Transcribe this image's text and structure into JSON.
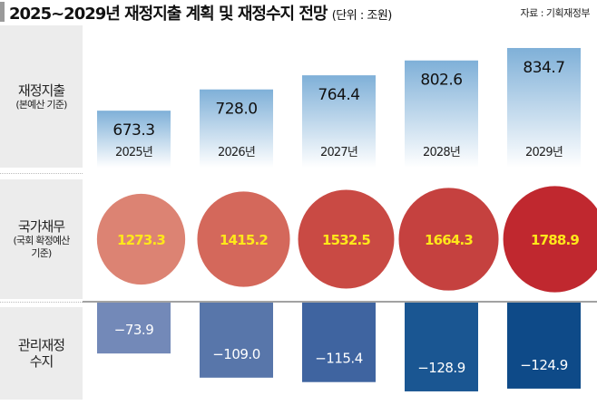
{
  "title": "2025~2029년 재정지출 계획 및 재정수지 전망",
  "unit": "(단위 : 조원)",
  "source": "자료 : 기획재정부",
  "chart_data": [
    {
      "type": "bar",
      "row_label": "재정지출",
      "row_sublabel": "(본예산 기준)",
      "categories": [
        "2025년",
        "2026년",
        "2027년",
        "2028년",
        "2029년"
      ],
      "values": [
        673.3,
        728.0,
        764.4,
        802.6,
        834.7
      ],
      "value_labels": [
        "673.3",
        "728.0",
        "764.4",
        "802.6",
        "834.7"
      ],
      "color": "#7fb0d8"
    },
    {
      "type": "bubble",
      "row_label": "국가채무",
      "row_sublabel": "(국회 확정예산 기준)",
      "categories": [
        "2025년",
        "2026년",
        "2027년",
        "2028년",
        "2029년"
      ],
      "values": [
        1273.3,
        1415.2,
        1532.5,
        1664.3,
        1788.9
      ],
      "value_labels": [
        "1273.3",
        "1415.2",
        "1532.5",
        "1664.3",
        "1788.9"
      ],
      "colors": [
        "#dc8373",
        "#d4685b",
        "#c94a44",
        "#c5413f",
        "#c0282f"
      ],
      "label_color": "#ffe81a"
    },
    {
      "type": "bar",
      "row_label": "관리재정 수지",
      "categories": [
        "2025년",
        "2026년",
        "2027년",
        "2028년",
        "2029년"
      ],
      "values": [
        -73.9,
        -109.0,
        -115.4,
        -128.9,
        -124.9
      ],
      "value_labels": [
        "−73.9",
        "−109.0",
        "−115.4",
        "−128.9",
        "−124.9"
      ],
      "colors": [
        "#7389b8",
        "#5876aa",
        "#3f64a0",
        "#1a5692",
        "#0e4a88"
      ]
    }
  ]
}
